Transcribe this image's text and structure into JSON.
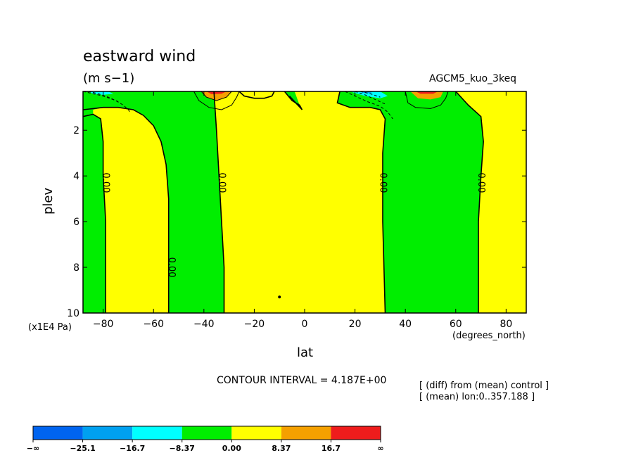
{
  "chart_data": {
    "type": "contour",
    "title": "eastward wind",
    "units": "(m s−1)",
    "run_label": "AGCM5_kuo_3keq",
    "xlabel": "lat",
    "x_unit": "(degrees_north)",
    "ylabel": "plev",
    "y_unit": "(x1E4 Pa)",
    "xlim": [
      -88,
      88
    ],
    "ylim": [
      0.3,
      10
    ],
    "y_inverted": true,
    "x_ticks": [
      -80,
      -60,
      -40,
      -20,
      0,
      20,
      40,
      60,
      80
    ],
    "x_tick_labels": [
      "−80",
      "−60",
      "−40",
      "−20",
      "0",
      "20",
      "40",
      "60",
      "80"
    ],
    "y_ticks": [
      2,
      4,
      6,
      8,
      10
    ],
    "y_tick_labels": [
      "2",
      "4",
      "6",
      "8",
      "10"
    ],
    "contour_interval": "CONTOUR INTERVAL = 4.187E+00",
    "zero_line_labels": [
      {
        "text": "0.00",
        "lat": -79,
        "plev": 4.3
      },
      {
        "text": "0.00",
        "lat": -53,
        "plev": 8.0
      },
      {
        "text": "0.00",
        "lat": -33,
        "plev": 4.3
      },
      {
        "text": "0.00",
        "lat": 31,
        "plev": 4.3
      },
      {
        "text": "0.00",
        "lat": 70,
        "plev": 4.3
      }
    ],
    "zero_contours": [
      [
        [
          -88,
          1.1
        ],
        [
          -84,
          1.05
        ],
        [
          -80,
          1.0
        ],
        [
          -74,
          1.0
        ],
        [
          -68,
          1.1
        ],
        [
          -64,
          1.35
        ],
        [
          -60,
          1.8
        ],
        [
          -57,
          2.5
        ],
        [
          -55,
          3.5
        ],
        [
          -54,
          5
        ],
        [
          -54,
          7
        ],
        [
          -54,
          10
        ]
      ],
      [
        [
          -88,
          1.4
        ],
        [
          -84,
          1.3
        ],
        [
          -81,
          1.5
        ],
        [
          -80,
          2.5
        ],
        [
          -80,
          4
        ],
        [
          -79,
          6
        ],
        [
          -79,
          8
        ],
        [
          -79,
          10
        ]
      ],
      [
        [
          -36,
          0.3
        ],
        [
          -35,
          2
        ],
        [
          -34,
          4
        ],
        [
          -33,
          6
        ],
        [
          -32,
          8
        ],
        [
          -32,
          10
        ]
      ],
      [
        [
          -26,
          0.3
        ],
        [
          -24,
          0.5
        ],
        [
          -20,
          0.6
        ],
        [
          -16,
          0.6
        ],
        [
          -13,
          0.5
        ],
        [
          -12,
          0.3
        ]
      ],
      [
        [
          -8,
          0.3
        ],
        [
          -5,
          0.7
        ],
        [
          -2,
          0.9
        ],
        [
          -1,
          1.1
        ],
        [
          -6,
          0.5
        ]
      ],
      [
        [
          14,
          0.3
        ],
        [
          13,
          0.8
        ],
        [
          18,
          1.0
        ],
        [
          26,
          1.0
        ],
        [
          30,
          1.1
        ],
        [
          32,
          1.5
        ],
        [
          31,
          3
        ],
        [
          31,
          6
        ],
        [
          32,
          10
        ]
      ],
      [
        [
          60,
          0.3
        ],
        [
          65,
          0.9
        ],
        [
          70,
          1.4
        ],
        [
          71,
          2.5
        ],
        [
          70,
          4
        ],
        [
          69,
          6
        ],
        [
          69,
          8
        ],
        [
          69,
          10
        ]
      ]
    ],
    "positive_contours": [
      [
        [
          -44,
          0.3
        ],
        [
          -42,
          0.7
        ],
        [
          -38,
          1.0
        ],
        [
          -33,
          1.1
        ],
        [
          -29,
          0.9
        ],
        [
          -27,
          0.55
        ],
        [
          -26,
          0.3
        ]
      ],
      [
        [
          -41,
          0.3
        ],
        [
          -39,
          0.55
        ],
        [
          -35,
          0.7
        ],
        [
          -31,
          0.55
        ],
        [
          -29,
          0.3
        ]
      ],
      [
        [
          40,
          0.3
        ],
        [
          41,
          0.8
        ],
        [
          44,
          1.0
        ],
        [
          50,
          1.05
        ],
        [
          54,
          0.9
        ],
        [
          56,
          0.6
        ],
        [
          57,
          0.3
        ]
      ]
    ],
    "negative_contours": [
      [
        [
          -88,
          0.3
        ],
        [
          -84,
          0.4
        ],
        [
          -80,
          0.5
        ],
        [
          -75,
          0.7
        ],
        [
          -72,
          0.9
        ],
        [
          -70,
          1.1
        ],
        [
          -69,
          1.25
        ]
      ],
      [
        [
          -86,
          0.3
        ],
        [
          -82,
          0.4
        ],
        [
          -78,
          0.55
        ],
        [
          -74,
          0.75
        ]
      ],
      [
        [
          16,
          0.3
        ],
        [
          20,
          0.5
        ],
        [
          25,
          0.75
        ],
        [
          30,
          0.95
        ],
        [
          33,
          1.2
        ],
        [
          35,
          1.5
        ]
      ],
      [
        [
          20,
          0.3
        ],
        [
          24,
          0.45
        ],
        [
          28,
          0.65
        ],
        [
          32,
          0.85
        ]
      ],
      [
        [
          22,
          0.3
        ],
        [
          26,
          0.4
        ],
        [
          30,
          0.55
        ]
      ]
    ],
    "regions": [
      {
        "color": "#00ee00",
        "polygon": [
          [
            -88,
            0.3
          ],
          [
            -36,
            0.3
          ],
          [
            -35,
            2
          ],
          [
            -34,
            4
          ],
          [
            -33,
            6
          ],
          [
            -32,
            8
          ],
          [
            -32,
            10
          ],
          [
            -88,
            10
          ]
        ]
      },
      {
        "color": "#ffff00",
        "polygon": [
          [
            -80,
            1.0
          ],
          [
            -74,
            1.0
          ],
          [
            -68,
            1.1
          ],
          [
            -64,
            1.35
          ],
          [
            -60,
            1.8
          ],
          [
            -57,
            2.5
          ],
          [
            -55,
            3.5
          ],
          [
            -54,
            5
          ],
          [
            -54,
            7
          ],
          [
            -54,
            10
          ],
          [
            -79,
            10
          ],
          [
            -79,
            8
          ],
          [
            -79,
            6
          ],
          [
            -80,
            4
          ],
          [
            -80,
            2.5
          ],
          [
            -81,
            1.5
          ],
          [
            -84,
            1.3
          ],
          [
            -84,
            1.1
          ]
        ]
      },
      {
        "color": "#00ee00",
        "polygon": [
          [
            14,
            0.3
          ],
          [
            60,
            0.3
          ],
          [
            65,
            0.9
          ],
          [
            70,
            1.4
          ],
          [
            71,
            2.5
          ],
          [
            70,
            4
          ],
          [
            69,
            6
          ],
          [
            69,
            8
          ],
          [
            69,
            10
          ],
          [
            32,
            10
          ],
          [
            31,
            6
          ],
          [
            31,
            3
          ],
          [
            32,
            1.5
          ],
          [
            30,
            1.1
          ],
          [
            26,
            1.0
          ],
          [
            18,
            1.0
          ],
          [
            13,
            0.8
          ]
        ]
      },
      {
        "color": "#00ee00",
        "polygon": [
          [
            -8,
            0.3
          ],
          [
            -4,
            0.3
          ],
          [
            -2,
            0.9
          ],
          [
            -1,
            1.1
          ],
          [
            -5,
            0.7
          ]
        ]
      },
      {
        "color": "#f5a000",
        "polygon": [
          [
            -41,
            0.3
          ],
          [
            -29,
            0.3
          ],
          [
            -31,
            0.55
          ],
          [
            -35,
            0.7
          ],
          [
            -39,
            0.55
          ]
        ]
      },
      {
        "color": "#f5a000",
        "polygon": [
          [
            42,
            0.3
          ],
          [
            55,
            0.3
          ],
          [
            54,
            0.55
          ],
          [
            50,
            0.65
          ],
          [
            45,
            0.6
          ]
        ]
      },
      {
        "color": "#ee1c1c",
        "polygon": [
          [
            -39,
            0.3
          ],
          [
            -31,
            0.3
          ],
          [
            -33,
            0.4
          ],
          [
            -37,
            0.42
          ]
        ]
      },
      {
        "color": "#ee1c1c",
        "polygon": [
          [
            44,
            0.3
          ],
          [
            53,
            0.3
          ],
          [
            51,
            0.4
          ],
          [
            46,
            0.4
          ]
        ]
      },
      {
        "color": "#00ffff",
        "polygon": [
          [
            -86,
            0.3
          ],
          [
            -78,
            0.3
          ],
          [
            -76,
            0.4
          ],
          [
            -80,
            0.45
          ],
          [
            -84,
            0.4
          ]
        ]
      },
      {
        "color": "#00ffff",
        "polygon": [
          [
            18,
            0.3
          ],
          [
            30,
            0.3
          ],
          [
            33,
            0.5
          ],
          [
            30,
            0.6
          ],
          [
            24,
            0.5
          ]
        ]
      },
      {
        "color": "#00a0f0",
        "polygon": [
          [
            22,
            0.3
          ],
          [
            27,
            0.3
          ],
          [
            26,
            0.38
          ],
          [
            23,
            0.36
          ]
        ]
      }
    ],
    "marker_points": [
      {
        "lat": -10,
        "plev": 9.3
      }
    ],
    "colorbar": {
      "colors": [
        "#0064f0",
        "#00a0f0",
        "#00ffff",
        "#00ee00",
        "#ffff00",
        "#f5a000",
        "#ee1c1c"
      ],
      "labels": [
        "−∞",
        "−25.1",
        "−16.7",
        "−8.37",
        "0.00",
        "8.37",
        "16.7",
        "∞"
      ],
      "levels": [
        -25.1,
        -16.7,
        -8.37,
        0.0,
        8.37,
        16.7
      ]
    }
  },
  "notes": {
    "line1": "[ (diff) from (mean) control ]",
    "line2": "[ (mean) lon:0..357.188 ]"
  }
}
